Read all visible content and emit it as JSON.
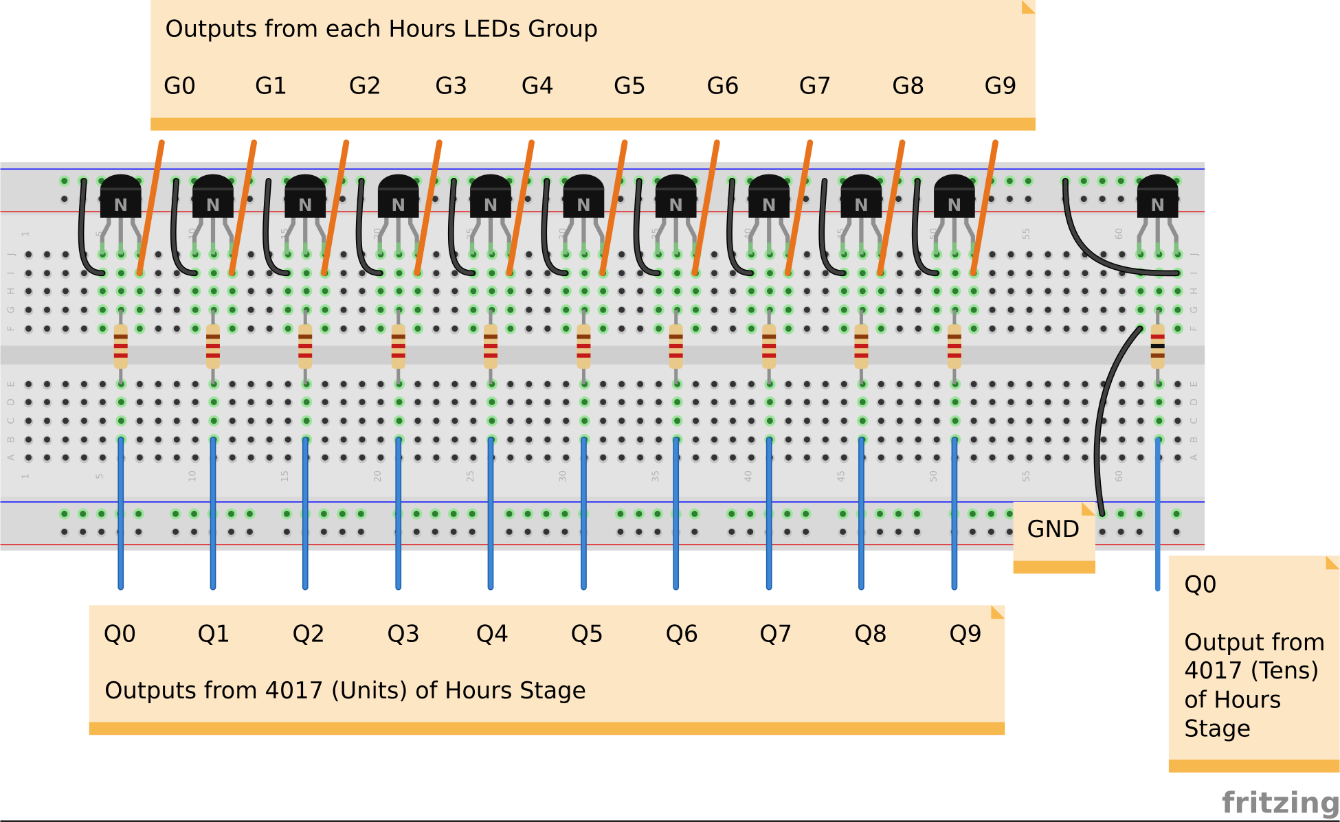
{
  "notes": {
    "top": {
      "title": "Outputs from each Hours LEDs Group",
      "labels": [
        "G0",
        "G1",
        "G2",
        "G3",
        "G4",
        "G5",
        "G6",
        "G7",
        "G8",
        "G9"
      ]
    },
    "bottom": {
      "title": "Outputs from 4017 (Units) of Hours Stage",
      "labels": [
        "Q0",
        "Q1",
        "Q2",
        "Q3",
        "Q4",
        "Q5",
        "Q6",
        "Q7",
        "Q8",
        "Q9"
      ]
    },
    "gnd": {
      "label": "GND"
    },
    "tens": {
      "label": "Q0",
      "lines": [
        "Output from",
        "4017 (Tens)",
        "of Hours",
        "Stage"
      ]
    }
  },
  "breadboard": {
    "row_letters_top": [
      "J",
      "I",
      "H",
      "G",
      "F"
    ],
    "row_letters_bottom": [
      "E",
      "D",
      "C",
      "B",
      "A"
    ],
    "column_numbers": [
      "1",
      "5",
      "10",
      "15",
      "20",
      "25",
      "30",
      "35",
      "40",
      "45",
      "50",
      "55",
      "60"
    ],
    "transistor_label": "N"
  },
  "logo": "fritzing",
  "colors": {
    "note_fill": "#fde6c4",
    "note_bar": "#f7b84e",
    "breadboard": "#d9d9d9",
    "orange_wire": "#e8731c",
    "blue_wire": "#3d87d6",
    "black_wire": "#404040",
    "hole_active": "#2e7d32",
    "rail_blue": "#1a1aff",
    "rail_red": "#e02020"
  }
}
